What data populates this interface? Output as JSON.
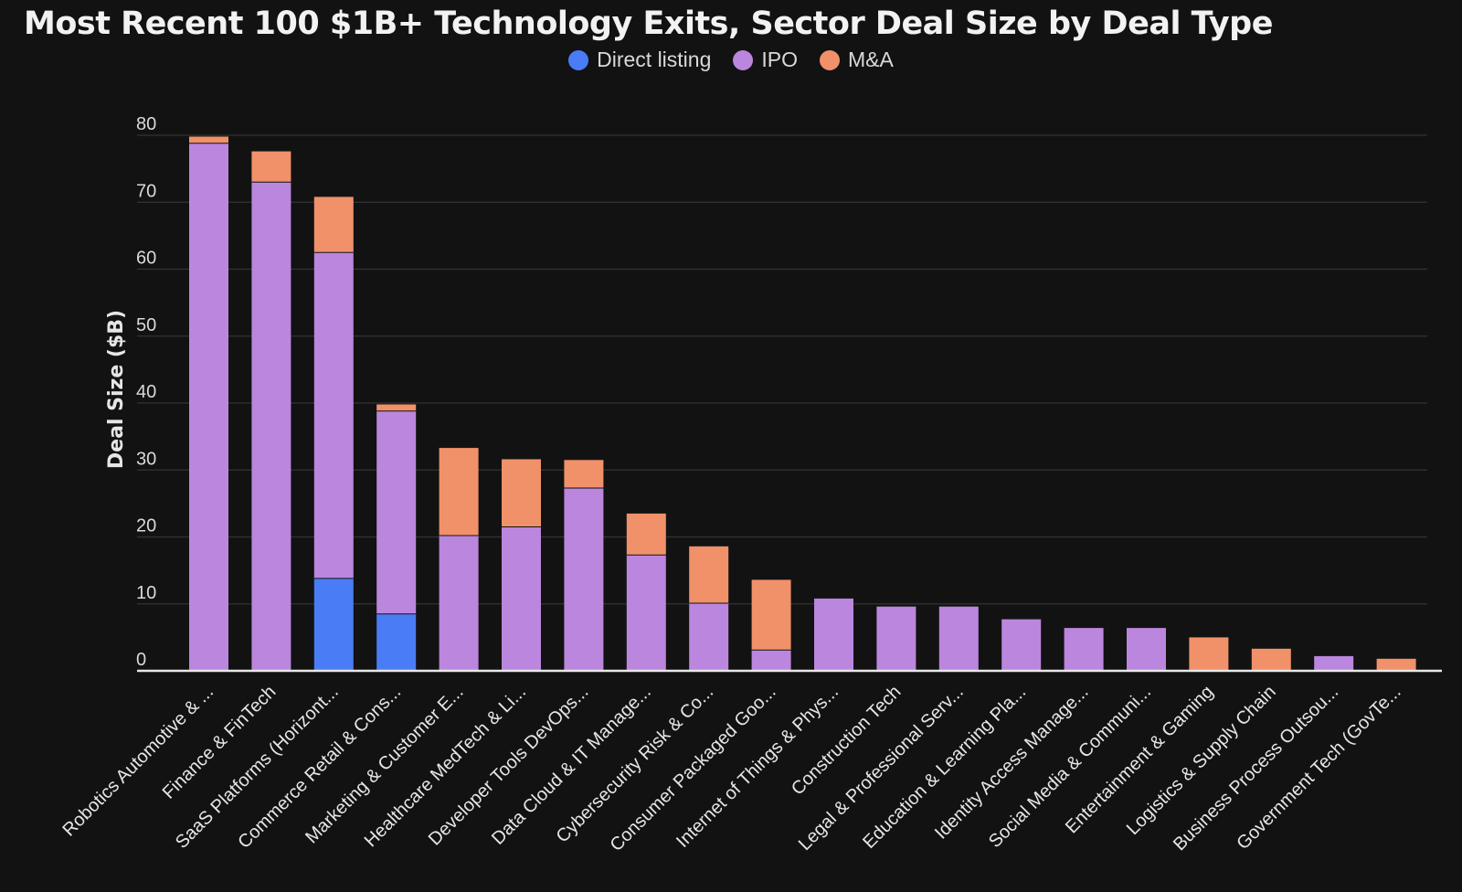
{
  "chart_data": {
    "type": "bar",
    "stacked": true,
    "title": "Most Recent 100 $1B+ Technology Exits, Sector Deal Size by Deal Type",
    "ylabel": "Deal Size ($B)",
    "xlabel": "",
    "ylim": [
      0,
      80
    ],
    "yticks": [
      0,
      10,
      20,
      30,
      40,
      50,
      60,
      70,
      80
    ],
    "grid": true,
    "legend_position": "top-center",
    "categories": [
      "Robotics Automotive & ...",
      "Finance & FinTech",
      "SaaS Platforms (Horizont...",
      "Commerce Retail & Cons...",
      "Marketing & Customer E...",
      "Healthcare MedTech & Li...",
      "Developer Tools DevOps...",
      "Data Cloud & IT Manage...",
      "Cybersecurity Risk & Co...",
      "Consumer Packaged Goo...",
      "Internet of Things & Phys...",
      "Construction Tech",
      "Legal & Professional Serv...",
      "Education & Learning Pla...",
      "Identity Access Manage...",
      "Social Media & Communi...",
      "Entertainment & Gaming",
      "Logistics & Supply Chain",
      "Business Process Outsou...",
      "Government Tech (GovTe..."
    ],
    "series": [
      {
        "name": "Direct listing",
        "color": "#4a7cf5",
        "values": [
          0,
          0,
          13.8,
          8.5,
          0,
          0,
          0,
          0,
          0,
          0,
          0,
          0,
          0,
          0,
          0,
          0,
          0,
          0,
          0,
          0
        ]
      },
      {
        "name": "IPO",
        "color": "#bb86dd",
        "values": [
          78.8,
          73.0,
          48.7,
          30.3,
          20.2,
          21.5,
          27.3,
          17.3,
          10.1,
          3.1,
          10.8,
          9.6,
          9.6,
          7.7,
          6.4,
          6.4,
          0,
          0,
          2.2,
          0
        ]
      },
      {
        "name": "M&A",
        "color": "#f0916a",
        "values": [
          1.0,
          4.6,
          8.3,
          1.0,
          13.1,
          10.1,
          4.2,
          6.2,
          8.5,
          10.5,
          0,
          0,
          0,
          0,
          0,
          0,
          5.0,
          3.3,
          0,
          1.8
        ]
      }
    ]
  }
}
